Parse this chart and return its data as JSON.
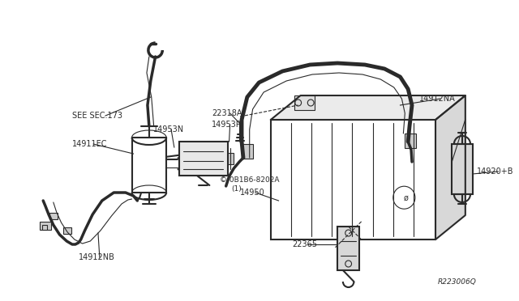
{
  "bg_color": "#ffffff",
  "line_color": "#2a2a2a",
  "lw_thick": 2.5,
  "lw_med": 1.5,
  "lw_thin": 0.8,
  "ref_code": "R223006Q",
  "labels": {
    "SEE_SEC_173": "SEE SEC.173",
    "22318A": "22318A",
    "14953N": "14953N",
    "14953P": "14953P",
    "14911EC": "14911EC",
    "14912NA": "14912NA",
    "14920B": "14920+B",
    "14950": "14950",
    "bolt_ref": "© 0B1B6-8202A",
    "bolt_count": "(1)",
    "22365": "22365",
    "14912NB": "14912NB"
  },
  "font_size": 7.0
}
